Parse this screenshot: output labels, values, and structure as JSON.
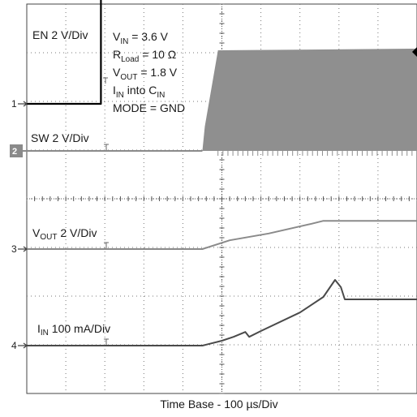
{
  "chart_data": {
    "type": "line",
    "title": "",
    "xlabel": "Time Base - 100 µs/Div",
    "time_base_us_per_div": 100,
    "divisions": {
      "x": 10,
      "y": 8
    },
    "grid": true,
    "conditions": [
      {
        "sym": "V",
        "sub": "IN",
        "rest": " = 3.6 V"
      },
      {
        "sym": "R",
        "sub": "Load",
        "rest": " = 10 Ω"
      },
      {
        "sym": "V",
        "sub": "OUT",
        "rest": " = 1.8 V"
      },
      {
        "sym": "I",
        "sub": "IN",
        "rest": " into C",
        "sub2": "IN"
      },
      {
        "sym": "MODE = GND",
        "sub": "",
        "rest": ""
      }
    ],
    "channels": [
      {
        "marker": "1",
        "label_sym": "EN 2 V/Div",
        "label_sub": "",
        "label_rest": "",
        "color": "#000000",
        "points": [
          [
            0,
            0
          ],
          [
            1.9,
            0
          ],
          [
            1.9,
            8.5
          ],
          [
            10,
            8.5
          ]
        ]
      },
      {
        "marker": "2",
        "label_sym": "SW 2 V/Div",
        "label_sub": "",
        "label_rest": "",
        "color": "#8a8a8a",
        "points": [
          [
            0,
            0
          ],
          [
            4.5,
            0
          ]
        ],
        "switching": {
          "start_div": 4.5,
          "ramp_end_div": 4.9,
          "high_v": 4.2
        }
      },
      {
        "marker": "3",
        "label_sym": "V",
        "label_sub": "OUT",
        "label_rest": " 2 V/Div",
        "color": "#8a8a8a",
        "points": [
          [
            0,
            0
          ],
          [
            4.5,
            0
          ],
          [
            5.2,
            0.18
          ],
          [
            6.2,
            0.32
          ],
          [
            7.3,
            0.52
          ],
          [
            7.6,
            0.58
          ],
          [
            10,
            0.58
          ]
        ]
      },
      {
        "marker": "4",
        "label_sym": "I",
        "label_sub": "IN",
        "label_rest": " 100 mA/Div",
        "color": "#4a4a4a",
        "points": [
          [
            0,
            0
          ],
          [
            4.5,
            0
          ],
          [
            5.0,
            0.1
          ],
          [
            5.3,
            0.18
          ],
          [
            5.6,
            0.28
          ],
          [
            5.7,
            0.18
          ],
          [
            6.0,
            0.3
          ],
          [
            7.0,
            0.68
          ],
          [
            7.6,
            1.0
          ],
          [
            7.9,
            1.35
          ],
          [
            8.05,
            1.2
          ],
          [
            8.15,
            0.95
          ],
          [
            8.3,
            0.95
          ],
          [
            10,
            0.95
          ]
        ]
      }
    ]
  }
}
